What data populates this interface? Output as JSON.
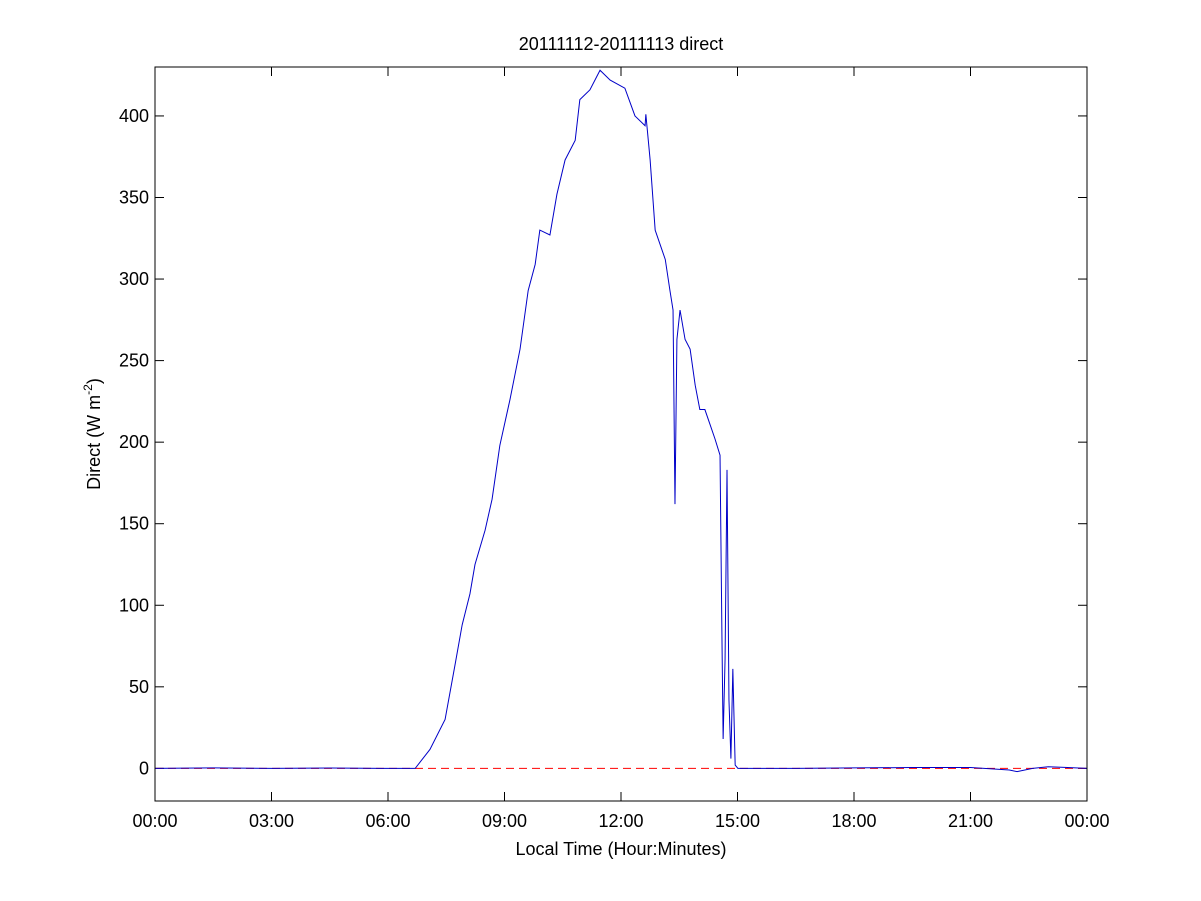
{
  "chart_data": {
    "type": "line",
    "title": "20111112-20111113 direct",
    "xlabel": "Local Time (Hour:Minutes)",
    "ylabel": [
      "Direct (W m",
      "-2",
      ")"
    ],
    "x": [
      0,
      1.5,
      3,
      4.5,
      6,
      6.7,
      7.08,
      7.47,
      7.73,
      7.91,
      8.11,
      8.24,
      8.5,
      8.68,
      8.88,
      9.14,
      9.4,
      9.61,
      9.79,
      9.91,
      10.17,
      10.35,
      10.56,
      10.82,
      10.94,
      11.2,
      11.46,
      11.72,
      12.1,
      12.36,
      12.62,
      12.64,
      12.75,
      12.88,
      13.01,
      13.14,
      13.26,
      13.34,
      13.39,
      13.44,
      13.52,
      13.65,
      13.78,
      13.91,
      14.03,
      14.16,
      14.29,
      14.42,
      14.55,
      14.6,
      14.63,
      14.68,
      14.73,
      14.78,
      14.83,
      14.88,
      14.94,
      15.01,
      16.5,
      18,
      19.5,
      21,
      22,
      22.2,
      22.6,
      23,
      23.5,
      24
    ],
    "series": [
      {
        "color": "#0000c8",
        "values": [
          0,
          0.3,
          0,
          0.2,
          0,
          0,
          11.6,
          30,
          64,
          88,
          107,
          125,
          146,
          165,
          198,
          226,
          257,
          293,
          309,
          330,
          327,
          352,
          373,
          385,
          410,
          416,
          428,
          422,
          417,
          400,
          394,
          401,
          373,
          330,
          321,
          312,
          293,
          281,
          162,
          263,
          281,
          263,
          257,
          235,
          220,
          220,
          211,
          202,
          192,
          79,
          18,
          67,
          183,
          42,
          6,
          61,
          2,
          0,
          0,
          0.3,
          0.5,
          0.5,
          -1,
          -2,
          0,
          1,
          0.5,
          0
        ]
      }
    ],
    "reference_line": {
      "value": 0,
      "color": "#ff0000",
      "dashed": true
    },
    "xlim": [
      0,
      24
    ],
    "xticks": [
      {
        "value": 0,
        "label": "00:00"
      },
      {
        "value": 3,
        "label": "03:00"
      },
      {
        "value": 6,
        "label": "06:00"
      },
      {
        "value": 9,
        "label": "09:00"
      },
      {
        "value": 12,
        "label": "12:00"
      },
      {
        "value": 15,
        "label": "15:00"
      },
      {
        "value": 18,
        "label": "18:00"
      },
      {
        "value": 21,
        "label": "21:00"
      },
      {
        "value": 24,
        "label": "00:00"
      }
    ],
    "ylim": [
      -20,
      430
    ],
    "yticks": [
      0,
      50,
      100,
      150,
      200,
      250,
      300,
      350,
      400
    ],
    "grid": false
  }
}
